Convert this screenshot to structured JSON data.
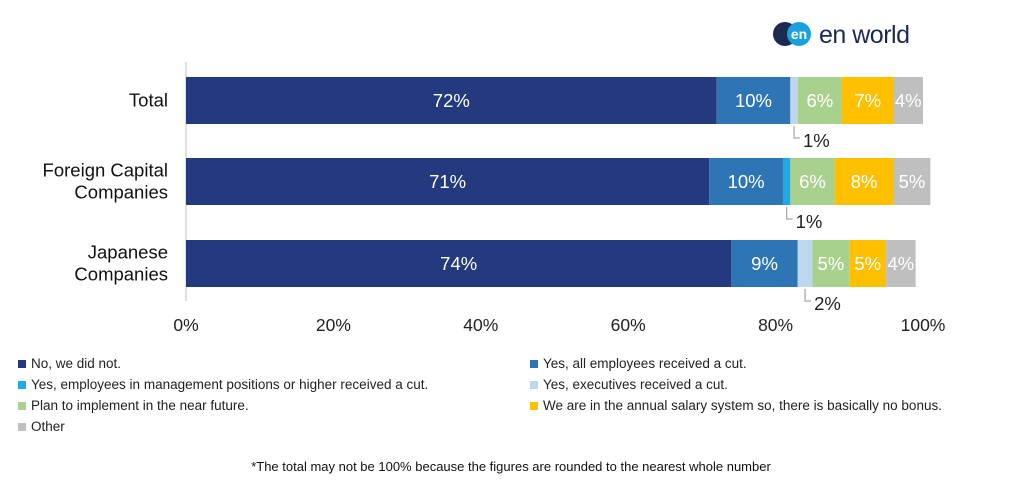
{
  "logo": {
    "mark": "en",
    "text": "en world"
  },
  "colors": {
    "no": "#243a7f",
    "all_employees": "#2e75b6",
    "management": "#1eaae7",
    "executives": "#bdd7ee",
    "plan": "#a9d18e",
    "annual": "#ffc000",
    "other": "#bfbfbf",
    "logo_blue": "#1b2a52",
    "logo_cyan": "#1aa0dc"
  },
  "chart_data": {
    "type": "bar",
    "orientation": "horizontal",
    "stacked": true,
    "categories": [
      "Total",
      "Foreign Capital Companies",
      "Japanese Companies"
    ],
    "category_lines": [
      [
        "Total"
      ],
      [
        "Foreign Capital",
        "Companies"
      ],
      [
        "Japanese",
        "Companies"
      ]
    ],
    "series": [
      {
        "name": "No, we did not.",
        "key": "no",
        "values": [
          72,
          71,
          74
        ],
        "labels": [
          "72%",
          "71%",
          "74%"
        ]
      },
      {
        "name": "Yes, all employees received a cut.",
        "key": "all_employees",
        "values": [
          10,
          10,
          9
        ],
        "labels": [
          "10%",
          "10%",
          "9%"
        ]
      },
      {
        "name": "Yes, employees in management positions or higher received a cut.",
        "key": "management",
        "values": [
          0,
          1,
          0
        ],
        "labels": [
          "",
          "",
          ""
        ]
      },
      {
        "name": "Yes, executives received a cut.",
        "key": "executives",
        "values": [
          1,
          0,
          2
        ],
        "labels": [
          "",
          "",
          ""
        ]
      },
      {
        "name": "Plan to implement in the near future.",
        "key": "plan",
        "values": [
          6,
          6,
          5
        ],
        "labels": [
          "6%",
          "6%",
          "5%"
        ]
      },
      {
        "name": "We are in the annual salary system so, there is basically no bonus.",
        "key": "annual",
        "values": [
          7,
          8,
          5
        ],
        "labels": [
          "7%",
          "8%",
          "5%"
        ]
      },
      {
        "name": "Other",
        "key": "other",
        "values": [
          4,
          5,
          4
        ],
        "labels": [
          "4%",
          "5%",
          "4%"
        ]
      }
    ],
    "callouts": [
      {
        "category": 0,
        "series": "executives",
        "label": "1%"
      },
      {
        "category": 1,
        "series": "management",
        "label": "1%"
      },
      {
        "category": 2,
        "series": "executives",
        "label": "2%"
      }
    ],
    "xlim": [
      0,
      100
    ],
    "xticks": [
      "0%",
      "20%",
      "40%",
      "60%",
      "80%",
      "100%"
    ],
    "legend_position": "bottom",
    "footnote": "*The total may not be 100% because the figures are rounded to the nearest whole number"
  }
}
